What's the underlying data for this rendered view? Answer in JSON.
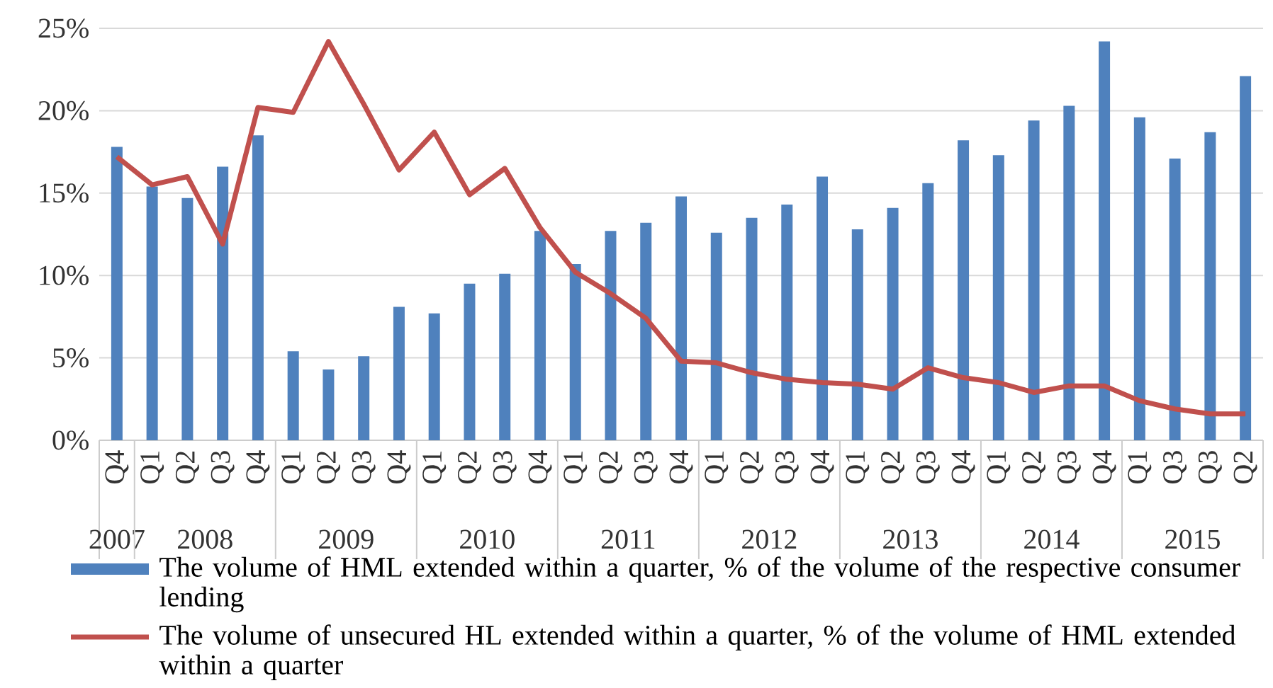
{
  "chart_data": {
    "type": "bar",
    "categories": [
      "Q4",
      "Q1",
      "Q2",
      "Q3",
      "Q4",
      "Q1",
      "Q2",
      "Q3",
      "Q4",
      "Q1",
      "Q2",
      "Q3",
      "Q4",
      "Q1",
      "Q2",
      "Q3",
      "Q4",
      "Q1",
      "Q2",
      "Q3",
      "Q4",
      "Q1",
      "Q2",
      "Q3",
      "Q4",
      "Q1",
      "Q2",
      "Q3",
      "Q4",
      "Q1",
      "Q3",
      "Q3",
      "Q2"
    ],
    "series": [
      {
        "name": "The volume of HML extended within a quarter, % of the volume of the respective consumer lending",
        "color": "#4f81bd",
        "values": [
          17.8,
          15.4,
          14.7,
          16.6,
          18.5,
          5.4,
          4.3,
          5.1,
          8.1,
          7.7,
          9.5,
          10.1,
          12.7,
          10.7,
          12.7,
          13.2,
          14.8,
          12.6,
          13.5,
          14.3,
          16.0,
          12.8,
          14.1,
          15.6,
          18.2,
          17.3,
          19.4,
          20.3,
          24.2,
          19.6,
          17.1,
          18.7,
          22.1
        ]
      },
      {
        "name": "The volume of unsecured HL extended within a quarter, % of the volume of HML extended within a quarter",
        "type": "line",
        "color": "#c0504d",
        "values": [
          17.2,
          15.5,
          16.0,
          11.9,
          20.2,
          19.9,
          24.2,
          20.4,
          16.4,
          18.7,
          14.9,
          16.5,
          12.9,
          10.2,
          8.9,
          7.4,
          4.8,
          4.7,
          4.1,
          3.7,
          3.5,
          3.4,
          3.1,
          4.4,
          3.8,
          3.5,
          2.9,
          3.3,
          3.3,
          2.4,
          1.9,
          1.6,
          1.6
        ]
      }
    ],
    "annotations": [
      "2007",
      "2008",
      "2009",
      "2010",
      "2011",
      "2012",
      "2013",
      "2014",
      "2015"
    ],
    "ylim": [
      0,
      25
    ],
    "yticks": [
      {
        "value": 0,
        "label": "0%"
      },
      {
        "value": 5,
        "label": "5%"
      },
      {
        "value": 10,
        "label": "10%"
      },
      {
        "value": 15,
        "label": "15%"
      },
      {
        "value": 20,
        "label": "20%"
      },
      {
        "value": 25,
        "label": "25%"
      }
    ],
    "grid": "y",
    "legend": "bottom",
    "marker": "none",
    "line_style": "solid"
  }
}
